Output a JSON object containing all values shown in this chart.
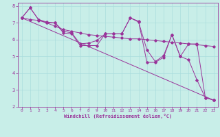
{
  "bg_color": "#c8eee8",
  "line_color": "#993399",
  "grid_color": "#aadddd",
  "xlabel": "Windchill (Refroidissement éolien,°C)",
  "xlabel_color": "#993399",
  "tick_color": "#993399",
  "spine_color": "#993399",
  "xlim": [
    -0.5,
    23.5
  ],
  "ylim": [
    2,
    8.2
  ],
  "yticks": [
    2,
    3,
    4,
    5,
    6,
    7,
    8
  ],
  "xticks": [
    0,
    1,
    2,
    3,
    4,
    5,
    6,
    7,
    8,
    9,
    10,
    11,
    12,
    13,
    14,
    15,
    16,
    17,
    18,
    19,
    20,
    21,
    22,
    23
  ],
  "series": [
    {
      "x": [
        0,
        1,
        2,
        3,
        4,
        5,
        6,
        7,
        8,
        9,
        10,
        11,
        12,
        13,
        14,
        15,
        16,
        17,
        18,
        19,
        20,
        21,
        22,
        23
      ],
      "y": [
        7.3,
        7.9,
        7.2,
        7.05,
        7.0,
        6.5,
        6.4,
        5.75,
        5.8,
        5.95,
        6.35,
        6.35,
        6.35,
        7.3,
        7.05,
        5.4,
        4.7,
        5.05,
        6.3,
        5.0,
        4.8,
        3.6,
        2.55,
        2.4
      ]
    },
    {
      "x": [
        0,
        1,
        2,
        3,
        4,
        5,
        6,
        7,
        8,
        9,
        10,
        11,
        12,
        13,
        14,
        15,
        16,
        17,
        18,
        19,
        20,
        21,
        22,
        23
      ],
      "y": [
        7.3,
        7.9,
        7.2,
        7.0,
        7.0,
        6.4,
        6.35,
        5.65,
        5.65,
        5.65,
        6.35,
        6.35,
        6.35,
        7.3,
        7.1,
        4.65,
        4.65,
        4.95,
        6.3,
        5.0,
        5.75,
        5.75,
        2.55,
        2.4
      ]
    },
    {
      "x": [
        0,
        23
      ],
      "y": [
        7.3,
        2.4
      ]
    },
    {
      "x": [
        0,
        1,
        2,
        3,
        4,
        5,
        6,
        7,
        8,
        9,
        10,
        11,
        12,
        13,
        14,
        15,
        16,
        17,
        18,
        19,
        20,
        21,
        22,
        23
      ],
      "y": [
        7.3,
        7.2,
        7.15,
        7.0,
        6.8,
        6.6,
        6.5,
        6.4,
        6.3,
        6.25,
        6.2,
        6.15,
        6.1,
        6.05,
        6.05,
        6.0,
        5.95,
        5.9,
        5.85,
        5.8,
        5.75,
        5.7,
        5.65,
        5.6
      ]
    }
  ]
}
